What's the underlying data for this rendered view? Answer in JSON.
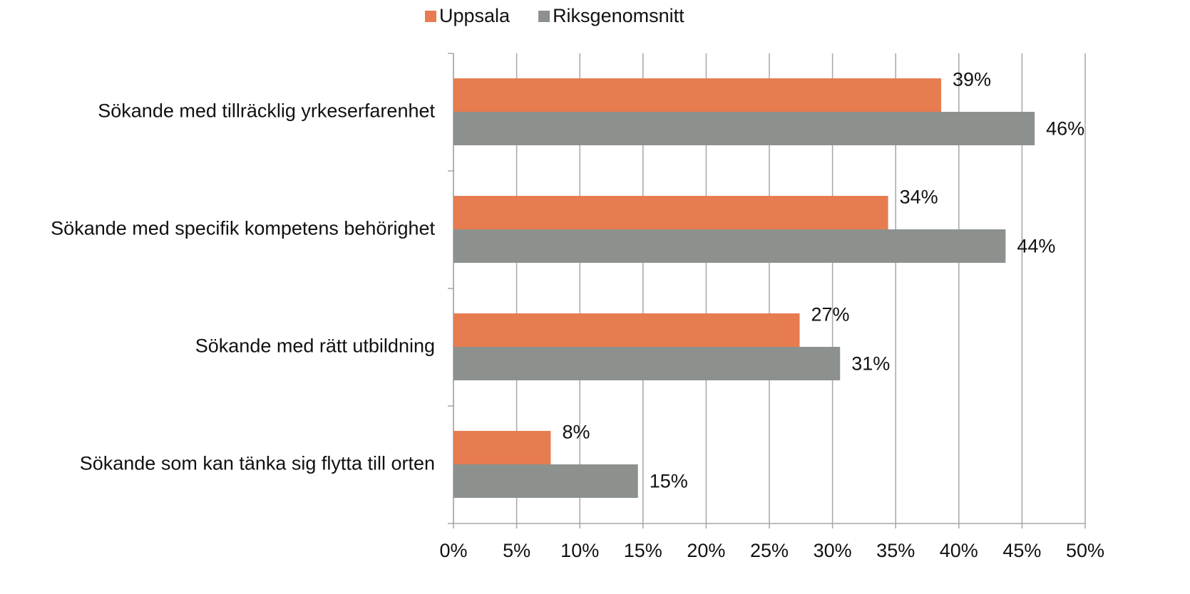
{
  "chart_data": {
    "type": "bar",
    "orientation": "horizontal",
    "categories": [
      "Sökande med tillräcklig yrkeserfarenhet",
      "Sökande med specifik kompetens behörighet",
      "Sökande med rätt utbildning",
      "Sökande som kan tänka sig flytta till orten"
    ],
    "series": [
      {
        "name": "Uppsala",
        "color": "#e67c50",
        "values": [
          38.6,
          34.4,
          27.4,
          7.7
        ],
        "value_labels": [
          "39%",
          "34%",
          "27%",
          "8%"
        ]
      },
      {
        "name": "Riksgenomsnitt",
        "color": "#8c918e",
        "values": [
          46.0,
          43.7,
          30.6,
          14.6
        ],
        "value_labels": [
          "46%",
          "44%",
          "31%",
          "15%"
        ]
      }
    ],
    "xlim": [
      0,
      50
    ],
    "xticks": [
      {
        "value": 0,
        "label": "0%"
      },
      {
        "value": 5,
        "label": "5%"
      },
      {
        "value": 10,
        "label": "10%"
      },
      {
        "value": 15,
        "label": "15%"
      },
      {
        "value": 20,
        "label": "20%"
      },
      {
        "value": 25,
        "label": "25%"
      },
      {
        "value": 30,
        "label": "30%"
      },
      {
        "value": 35,
        "label": "35%"
      },
      {
        "value": 40,
        "label": "40%"
      },
      {
        "value": 45,
        "label": "45%"
      },
      {
        "value": 50,
        "label": "50%"
      }
    ],
    "grid": true,
    "legend": "top"
  }
}
